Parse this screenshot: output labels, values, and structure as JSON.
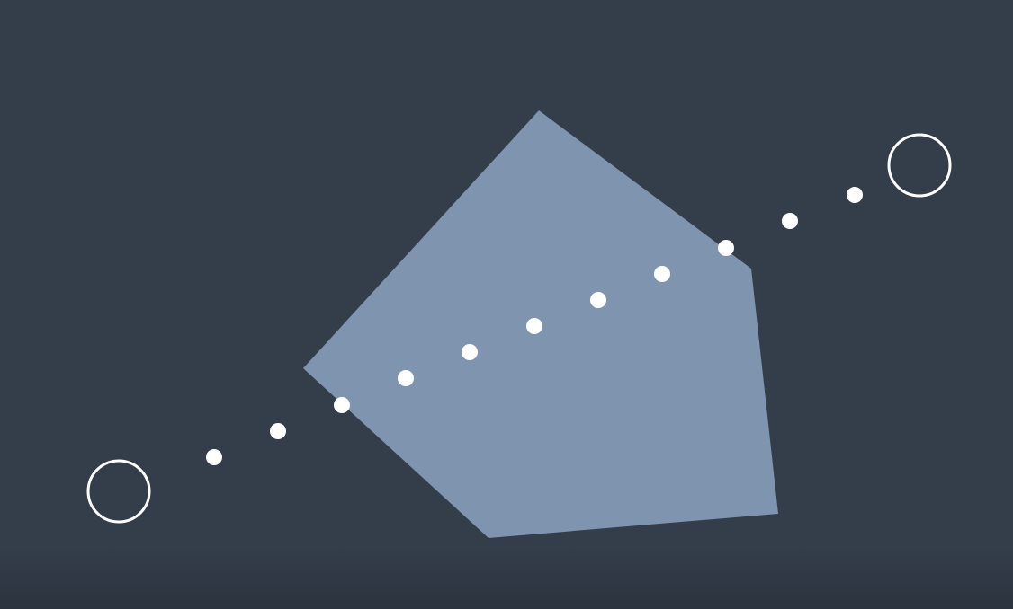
{
  "scene": {
    "background_color": "#343D4A",
    "background_bottom_color": "#2B333E",
    "polygon_color": "#7F94AE",
    "marker_color": "#FFFFFF",
    "endpoint_shape": "hollow-circle",
    "dot_shape": "filled-circle",
    "dot_count": 11
  }
}
